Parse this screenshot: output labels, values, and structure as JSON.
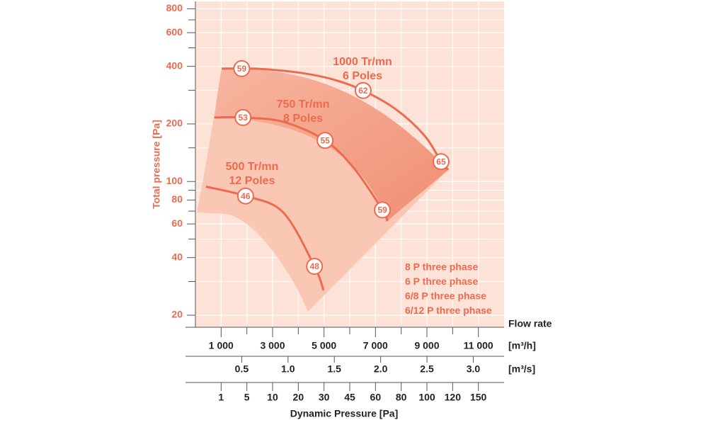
{
  "chart_data": {
    "type": "line",
    "y_label": "Total pressure [Pa]",
    "x_label": "Flow rate",
    "x_unit": "[m³/h]",
    "x2_unit": "[m³/s]",
    "x3_label": "Dynamic Pressure [Pa]",
    "log_y": true,
    "grid": true,
    "xlim": [
      0,
      12000
    ],
    "xticks": [
      {
        "value": 1000,
        "label": "1 000"
      },
      {
        "value": 3000,
        "label": "3 000"
      },
      {
        "value": 5000,
        "label": "5 000"
      },
      {
        "value": 7000,
        "label": "7 000"
      },
      {
        "value": 9000,
        "label": "9 000"
      },
      {
        "value": 11000,
        "label": "11 000"
      }
    ],
    "xminorticks": [
      2000,
      4000,
      6000,
      8000,
      10000
    ],
    "x2lim": [
      0,
      3.333
    ],
    "x2ticks": [
      0.5,
      {
        "value": 1,
        "label": "1.0"
      },
      1.5,
      {
        "value": 2,
        "label": "2.0"
      },
      2.5,
      {
        "value": 3,
        "label": "3.0"
      }
    ],
    "x3ticks": [
      1,
      5,
      10,
      20,
      30,
      45,
      60,
      80,
      100,
      120,
      150
    ],
    "x3ticks_flow": [
      1000,
      2000,
      3000,
      4000,
      5000,
      6000,
      7000,
      8000,
      9000,
      10000,
      11000
    ],
    "ylim": [
      17.3,
      874
    ],
    "yticks": [
      20,
      40,
      60,
      80,
      100,
      200,
      400,
      600,
      800
    ],
    "yminorticks": [
      30,
      50,
      70,
      90,
      150,
      300,
      500,
      700
    ],
    "color": "#ee6a4e",
    "series": [
      {
        "name": "1000 Tr/mn",
        "poles": "6 Poles",
        "x": [
          1020,
          2310,
          3960,
          5340,
          6520,
          7820,
          8920,
          9550,
          9830
        ],
        "values": [
          389,
          389,
          372,
          342,
          299,
          237,
          173,
          127,
          115
        ],
        "points": [
          {
            "x": 1800,
            "y": 389,
            "value": 59
          },
          {
            "x": 6520,
            "y": 299,
            "value": 62
          },
          {
            "x": 9550,
            "y": 127,
            "value": 65
          }
        ]
      },
      {
        "name": "750 Tr/mn",
        "poles": "8 Poles",
        "x": [
          740,
          1850,
          3420,
          5040,
          6170,
          7270,
          7460
        ],
        "values": [
          216,
          216,
          205,
          164,
          117,
          71,
          62
        ],
        "points": [
          {
            "x": 1850,
            "y": 216,
            "value": 53
          },
          {
            "x": 5040,
            "y": 164,
            "value": 55
          },
          {
            "x": 7270,
            "y": 71,
            "value": 59
          }
        ]
      },
      {
        "name": "500 Tr/mn",
        "poles": "12 Poles",
        "x": [
          410,
          1950,
          3410,
          4630,
          4980
        ],
        "values": [
          94,
          84,
          69,
          36,
          27
        ],
        "points": [
          {
            "x": 1950,
            "y": 84,
            "value": 46
          },
          {
            "x": 4630,
            "y": 36,
            "value": 48
          }
        ]
      }
    ],
    "notes": [
      "8 P three phase",
      "6 P three phase",
      "6/8 P three phase",
      "6/12 P three phase"
    ]
  }
}
